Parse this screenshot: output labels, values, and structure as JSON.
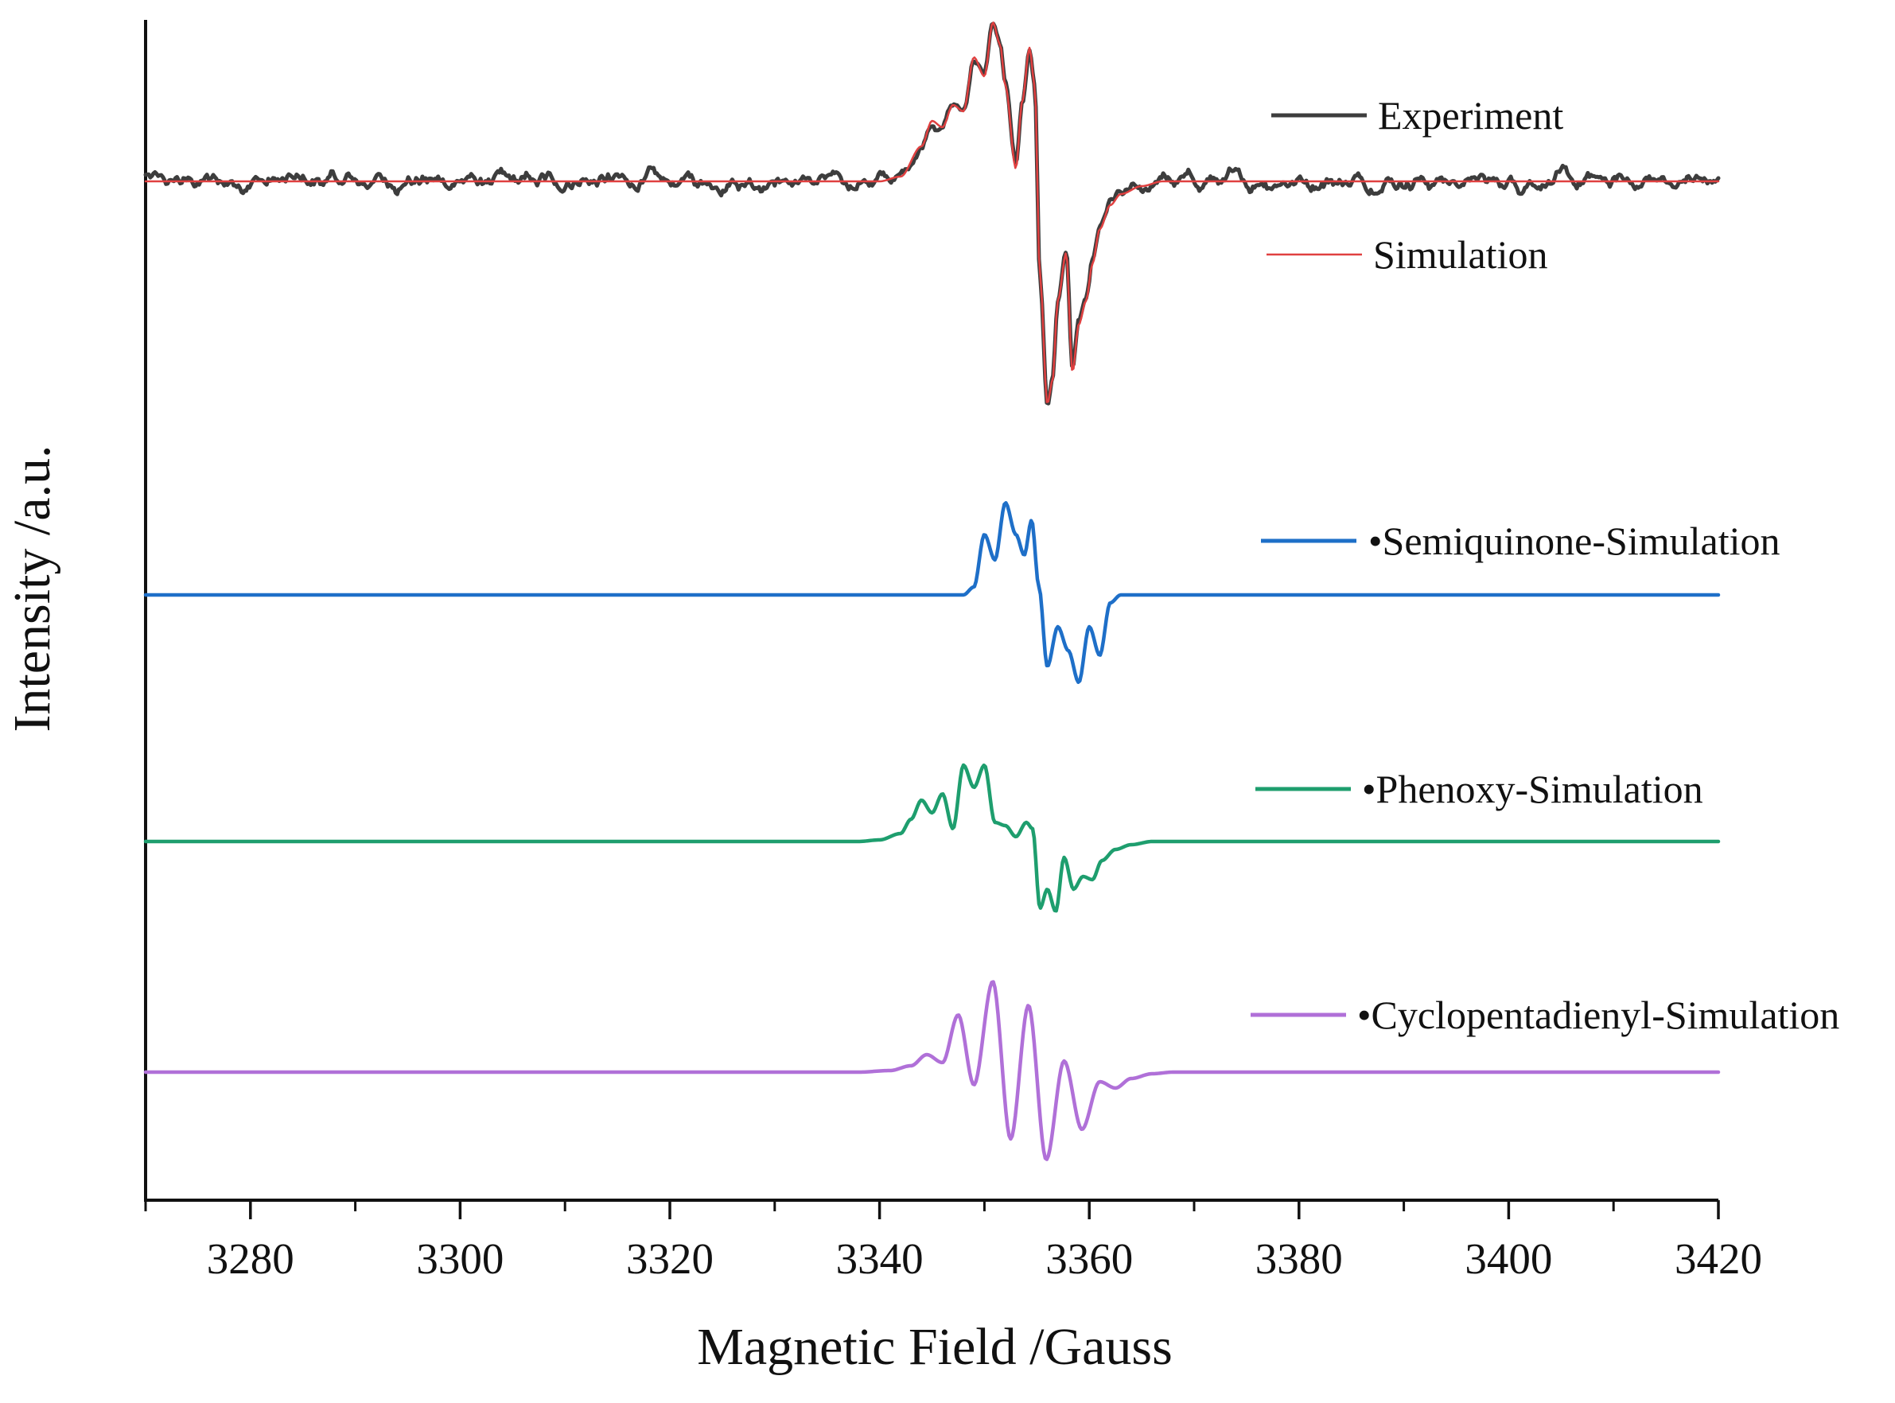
{
  "chart_data": {
    "type": "line",
    "title": "",
    "xlabel": "Magnetic Field /Gauss",
    "ylabel": "Intensity /a.u.",
    "xlim": [
      3270,
      3420
    ],
    "x_ticks": [
      3280,
      3300,
      3320,
      3340,
      3360,
      3380,
      3400,
      3420
    ],
    "x_minor_step": 10,
    "y_ticks_shown": false,
    "grid": false,
    "legend_position": "right, beside each trace",
    "series": [
      {
        "name": "Experiment",
        "legend": "Experiment",
        "color": "#3d3d3d",
        "style": "noisy",
        "baseline": 0,
        "points": [
          [
            3270,
            0
          ],
          [
            3340,
            0
          ],
          [
            3342,
            0.03
          ],
          [
            3344,
            0.22
          ],
          [
            3345,
            0.38
          ],
          [
            3346,
            0.34
          ],
          [
            3347,
            0.48
          ],
          [
            3348,
            0.44
          ],
          [
            3349,
            0.78
          ],
          [
            3350,
            0.66
          ],
          [
            3350.8,
            1.0
          ],
          [
            3351.5,
            0.86
          ],
          [
            3352,
            0.6
          ],
          [
            3353,
            0.08
          ],
          [
            3353.6,
            0.5
          ],
          [
            3354.3,
            0.84
          ],
          [
            3354.8,
            0.6
          ],
          [
            3355.3,
            -0.6
          ],
          [
            3356,
            -1.4
          ],
          [
            3356.5,
            -1.25
          ],
          [
            3357,
            -0.75
          ],
          [
            3357.8,
            -0.45
          ],
          [
            3358.4,
            -1.2
          ],
          [
            3359,
            -0.9
          ],
          [
            3359.7,
            -0.75
          ],
          [
            3360.3,
            -0.52
          ],
          [
            3361,
            -0.3
          ],
          [
            3362,
            -0.15
          ],
          [
            3363,
            -0.08
          ],
          [
            3365,
            -0.03
          ],
          [
            3367,
            0
          ],
          [
            3420,
            0
          ]
        ]
      },
      {
        "name": "Simulation",
        "legend": "Simulation",
        "color": "#e04040",
        "style": "smooth",
        "baseline": 0,
        "points": [
          [
            3270,
            0
          ],
          [
            3340,
            0
          ],
          [
            3342,
            0.03
          ],
          [
            3344,
            0.22
          ],
          [
            3345,
            0.38
          ],
          [
            3346,
            0.34
          ],
          [
            3347,
            0.48
          ],
          [
            3348,
            0.44
          ],
          [
            3349,
            0.78
          ],
          [
            3350,
            0.66
          ],
          [
            3350.8,
            1.0
          ],
          [
            3351.5,
            0.86
          ],
          [
            3352,
            0.6
          ],
          [
            3353,
            0.08
          ],
          [
            3353.6,
            0.5
          ],
          [
            3354.3,
            0.84
          ],
          [
            3354.8,
            0.6
          ],
          [
            3355.3,
            -0.6
          ],
          [
            3356,
            -1.4
          ],
          [
            3356.5,
            -1.25
          ],
          [
            3357,
            -0.75
          ],
          [
            3357.8,
            -0.45
          ],
          [
            3358.4,
            -1.2
          ],
          [
            3359,
            -0.9
          ],
          [
            3359.7,
            -0.75
          ],
          [
            3360.3,
            -0.52
          ],
          [
            3361,
            -0.3
          ],
          [
            3362,
            -0.15
          ],
          [
            3363,
            -0.08
          ],
          [
            3365,
            -0.03
          ],
          [
            3367,
            0
          ],
          [
            3420,
            0
          ]
        ]
      },
      {
        "name": "Semiquinone-Simulation",
        "legend": "•Semiquinone-Simulation",
        "color": "#1e6fc8",
        "style": "smooth",
        "baseline": -2.6,
        "points": [
          [
            3270,
            0
          ],
          [
            3348,
            0
          ],
          [
            3349,
            0.05
          ],
          [
            3350,
            0.38
          ],
          [
            3351,
            0.22
          ],
          [
            3352,
            0.58
          ],
          [
            3353,
            0.38
          ],
          [
            3353.8,
            0.25
          ],
          [
            3354.5,
            0.47
          ],
          [
            3355.2,
            0.05
          ],
          [
            3356,
            -0.45
          ],
          [
            3357,
            -0.2
          ],
          [
            3358,
            -0.35
          ],
          [
            3359,
            -0.55
          ],
          [
            3360,
            -0.2
          ],
          [
            3361,
            -0.38
          ],
          [
            3362,
            -0.05
          ],
          [
            3363,
            0
          ],
          [
            3420,
            0
          ]
        ]
      },
      {
        "name": "Phenoxy-Simulation",
        "legend": "•Phenoxy-Simulation",
        "color": "#1e9e6e",
        "style": "smooth",
        "baseline": -4.15,
        "points": [
          [
            3270,
            0
          ],
          [
            3338,
            0
          ],
          [
            3340,
            0.01
          ],
          [
            3342,
            0.05
          ],
          [
            3343,
            0.14
          ],
          [
            3344,
            0.26
          ],
          [
            3345,
            0.18
          ],
          [
            3346,
            0.3
          ],
          [
            3347,
            0.08
          ],
          [
            3348,
            0.48
          ],
          [
            3349,
            0.34
          ],
          [
            3350,
            0.48
          ],
          [
            3351,
            0.12
          ],
          [
            3352,
            0.1
          ],
          [
            3353,
            0.03
          ],
          [
            3354,
            0.12
          ],
          [
            3354.6,
            0.08
          ],
          [
            3355.3,
            -0.42
          ],
          [
            3356,
            -0.3
          ],
          [
            3356.8,
            -0.44
          ],
          [
            3357.6,
            -0.1
          ],
          [
            3358.5,
            -0.3
          ],
          [
            3359.4,
            -0.22
          ],
          [
            3360.3,
            -0.24
          ],
          [
            3361.2,
            -0.12
          ],
          [
            3362.5,
            -0.05
          ],
          [
            3364,
            -0.02
          ],
          [
            3366,
            0
          ],
          [
            3420,
            0
          ]
        ]
      },
      {
        "name": "Cyclopentadienyl-Simulation",
        "legend": "•Cyclopentadienyl-Simulation",
        "color": "#b070d8",
        "style": "smooth",
        "baseline": -5.6,
        "points": [
          [
            3270,
            0
          ],
          [
            3338,
            0
          ],
          [
            3341,
            0.01
          ],
          [
            3343,
            0.04
          ],
          [
            3344.5,
            0.11
          ],
          [
            3346,
            0.06
          ],
          [
            3347.5,
            0.36
          ],
          [
            3349,
            -0.08
          ],
          [
            3350.8,
            0.57
          ],
          [
            3352.5,
            -0.42
          ],
          [
            3354.2,
            0.42
          ],
          [
            3355.9,
            -0.55
          ],
          [
            3357.6,
            0.07
          ],
          [
            3359.3,
            -0.36
          ],
          [
            3361,
            -0.06
          ],
          [
            3362.5,
            -0.1
          ],
          [
            3364,
            -0.04
          ],
          [
            3366,
            -0.01
          ],
          [
            3368,
            0
          ],
          [
            3420,
            0
          ]
        ]
      }
    ]
  }
}
